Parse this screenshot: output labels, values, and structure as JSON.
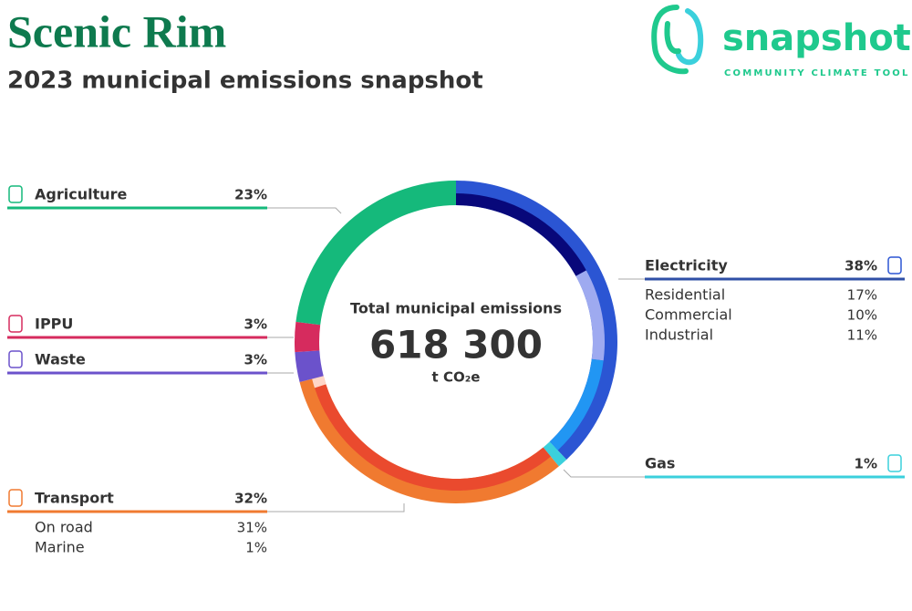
{
  "chart_data": {
    "type": "donut",
    "title": "Scenic Rim",
    "subtitle": "2023 municipal emissions snapshot",
    "brand": "snapshot",
    "brand_tagline": "COMMUNITY CLIMATE TOOL",
    "center_label": "Total municipal emissions",
    "total": 618300,
    "total_label": "618 300",
    "unit": "t CO₂e",
    "sectors": [
      {
        "name": "Electricity",
        "value": 38,
        "value_label": "38%",
        "color": "#2b55d3",
        "subsectors": [
          {
            "name": "Residential",
            "value": 17,
            "value_label": "17%",
            "color": "#08087a"
          },
          {
            "name": "Commercial",
            "value": 10,
            "value_label": "10%",
            "color": "#9eaaf0"
          },
          {
            "name": "Industrial",
            "value": 11,
            "value_label": "11%",
            "color": "#2196f3"
          }
        ]
      },
      {
        "name": "Gas",
        "value": 1,
        "value_label": "1%",
        "color": "#3bd0dc"
      },
      {
        "name": "Transport",
        "value": 32,
        "value_label": "32%",
        "color": "#f07a30",
        "subsectors": [
          {
            "name": "On road",
            "value": 31,
            "value_label": "31%",
            "color": "#ea4a2e"
          },
          {
            "name": "Marine",
            "value": 1,
            "value_label": "1%",
            "color": "#ffd6c8"
          }
        ]
      },
      {
        "name": "Waste",
        "value": 3,
        "value_label": "3%",
        "color": "#6b52cb"
      },
      {
        "name": "IPPU",
        "value": 3,
        "value_label": "3%",
        "color": "#d62b5e"
      },
      {
        "name": "Agriculture",
        "value": 23,
        "value_label": "23%",
        "color": "#15b97b"
      }
    ]
  }
}
